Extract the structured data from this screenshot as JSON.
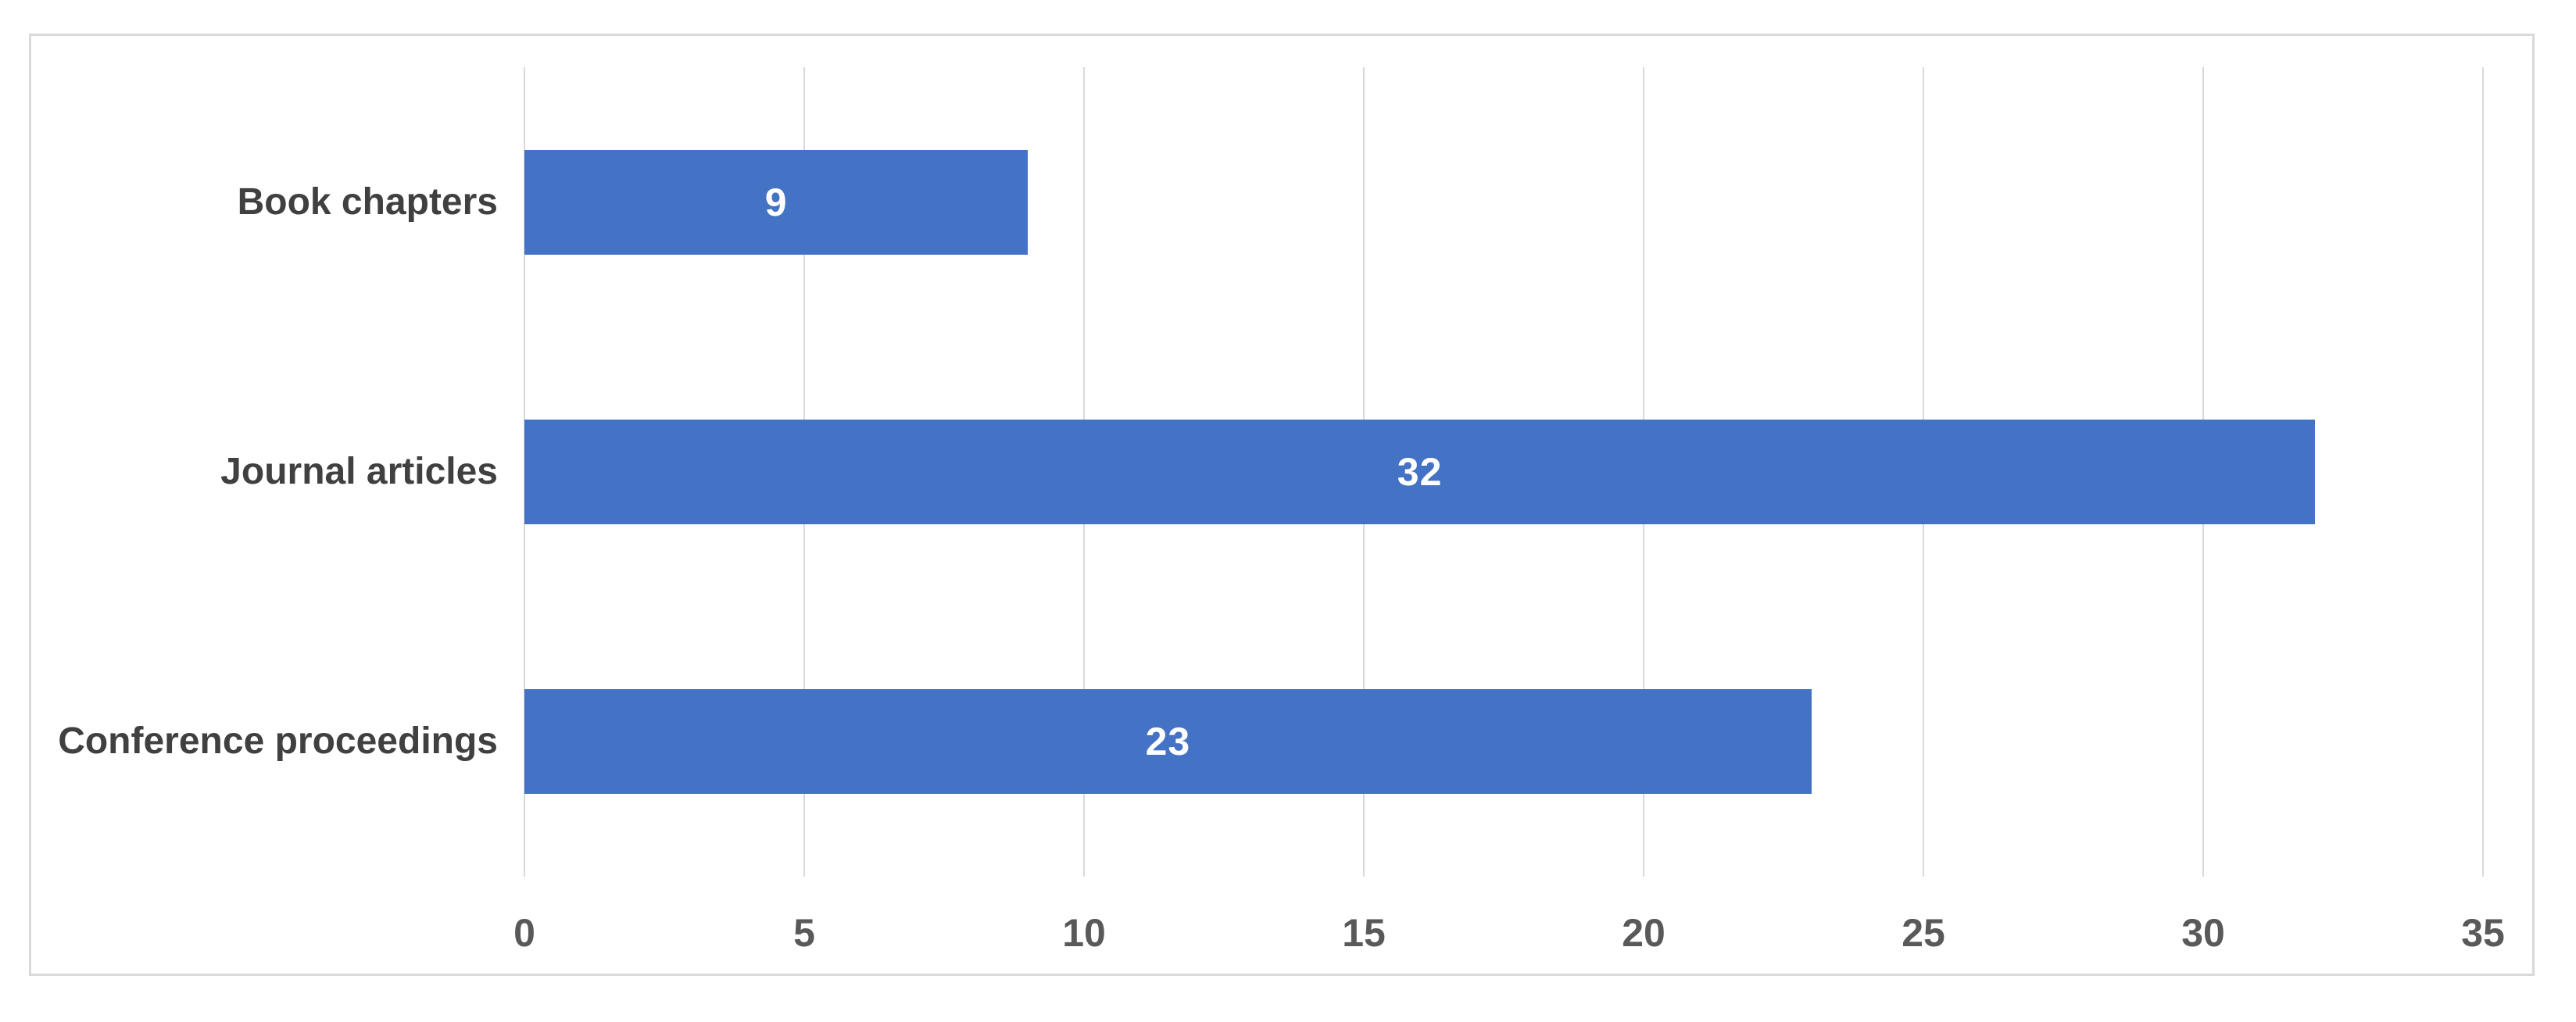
{
  "chart_data": {
    "type": "bar",
    "orientation": "horizontal",
    "title": "",
    "xlabel": "",
    "ylabel": "",
    "categories": [
      "Book chapters",
      "Journal articles",
      "Conference proceedings"
    ],
    "values": [
      9,
      32,
      23
    ],
    "data_labels": [
      "9",
      "32",
      "23"
    ],
    "xlim": [
      0,
      35
    ],
    "xticks": [
      0,
      5,
      10,
      15,
      20,
      25,
      30,
      35
    ],
    "tick_labels": [
      "0",
      "5",
      "10",
      "15",
      "20",
      "25",
      "30",
      "35"
    ],
    "grid": true,
    "gridline_axis": "x",
    "legend": false,
    "colors": {
      "bar": "#4472C4",
      "value_label": "#FFFFFF",
      "tick_text": "#595959",
      "category_text": "#404040",
      "gridline": "#D9D9D9",
      "frame_border": "#D9D9D9",
      "background": "#FFFFFF"
    }
  }
}
